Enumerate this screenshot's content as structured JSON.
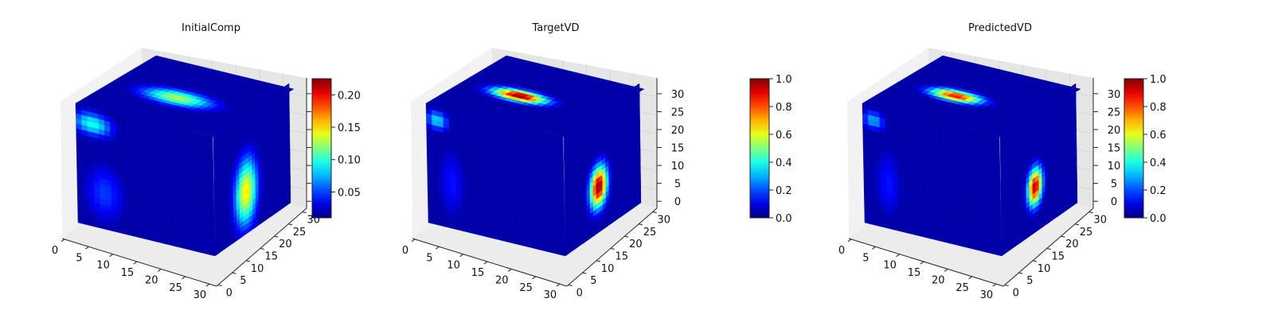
{
  "chart_data": [
    {
      "type": "voxel3d",
      "title": "InitialComp",
      "x_ticks": [
        0,
        5,
        10,
        15,
        20,
        25,
        30
      ],
      "y_ticks": [
        0,
        5,
        10,
        15,
        20,
        25,
        30
      ],
      "z_ticks": [],
      "grid_size": 32,
      "colormap": "jet",
      "colorbar": {
        "ticks": [
          "0.05",
          "0.10",
          "0.15",
          "0.20"
        ],
        "range": [
          0.01,
          0.225
        ]
      },
      "blobs": [
        {
          "face": "top",
          "center": [
            0.48,
            0.45
          ],
          "radius": [
            0.3,
            0.15
          ],
          "peak": 0.55
        },
        {
          "face": "side",
          "center": [
            0.42,
            0.35
          ],
          "radius": [
            0.18,
            0.34
          ],
          "peak": 0.65
        },
        {
          "face": "front",
          "center": [
            0.12,
            0.86
          ],
          "radius": [
            0.18,
            0.12
          ],
          "peak": 0.4
        },
        {
          "face": "front",
          "center": [
            0.2,
            0.3
          ],
          "radius": [
            0.18,
            0.3
          ],
          "peak": 0.18
        }
      ]
    },
    {
      "type": "voxel3d",
      "title": "TargetVD",
      "x_ticks": [
        0,
        5,
        10,
        15,
        20,
        25,
        30
      ],
      "y_ticks": [
        0,
        5,
        10,
        15,
        20,
        25,
        30
      ],
      "z_ticks": [
        0,
        5,
        10,
        15,
        20,
        25,
        30
      ],
      "grid_size": 32,
      "colormap": "jet",
      "colorbar": {
        "ticks": [
          "0.0",
          "0.2",
          "0.4",
          "0.6",
          "0.8",
          "1.0"
        ],
        "range": [
          0.0,
          1.0
        ]
      },
      "blobs": [
        {
          "face": "top",
          "center": [
            0.42,
            0.45
          ],
          "radius": [
            0.23,
            0.11
          ],
          "peak": 1.0
        },
        {
          "face": "side",
          "center": [
            0.45,
            0.38
          ],
          "radius": [
            0.14,
            0.21
          ],
          "peak": 1.0
        },
        {
          "face": "front",
          "center": [
            0.08,
            0.88
          ],
          "radius": [
            0.1,
            0.1
          ],
          "peak": 0.35
        },
        {
          "face": "front",
          "center": [
            0.18,
            0.38
          ],
          "radius": [
            0.12,
            0.36
          ],
          "peak": 0.14
        }
      ]
    },
    {
      "type": "voxel3d",
      "title": "PredictedVD",
      "x_ticks": [
        0,
        5,
        10,
        15,
        20,
        25,
        30
      ],
      "y_ticks": [
        0,
        5,
        10,
        15,
        20,
        25,
        30
      ],
      "z_ticks": [
        0,
        5,
        10,
        15,
        20,
        25,
        30
      ],
      "grid_size": 32,
      "colormap": "jet",
      "colorbar": {
        "ticks": [
          "0.0",
          "0.2",
          "0.4",
          "0.6",
          "0.8",
          "1.0"
        ],
        "range": [
          0.0,
          1.0
        ]
      },
      "blobs": [
        {
          "face": "top",
          "center": [
            0.42,
            0.45
          ],
          "radius": [
            0.22,
            0.11
          ],
          "peak": 0.88
        },
        {
          "face": "side",
          "center": [
            0.45,
            0.38
          ],
          "radius": [
            0.12,
            0.19
          ],
          "peak": 0.95
        },
        {
          "face": "front",
          "center": [
            0.08,
            0.88
          ],
          "radius": [
            0.1,
            0.1
          ],
          "peak": 0.3
        },
        {
          "face": "front",
          "center": [
            0.18,
            0.38
          ],
          "radius": [
            0.12,
            0.36
          ],
          "peak": 0.14
        }
      ]
    }
  ]
}
